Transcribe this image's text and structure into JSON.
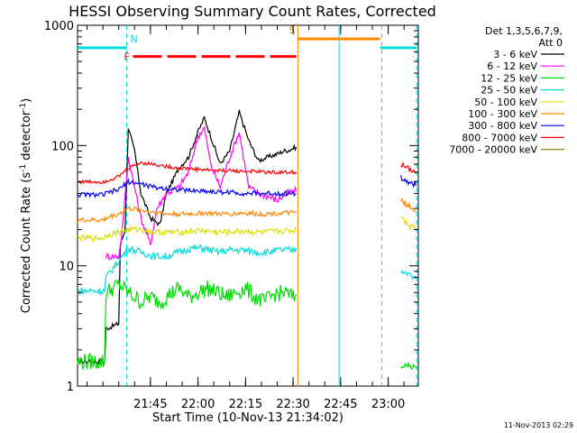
{
  "chart_data": {
    "type": "line",
    "title": "HESSI Observing Summary Count Rates, Corrected",
    "xlabel": "Start Time (10-Nov-13 21:34:02)",
    "ylabel_main": "Corrected Count Rate (s",
    "ylabel_sup1": "-1",
    "ylabel_mid": " detector",
    "ylabel_sup2": "-1",
    "ylabel_end": ")",
    "footer": "11-Nov-2013 02:29",
    "y_scale": "log",
    "ylim": [
      1,
      1000
    ],
    "xlim_minutes": [
      -38,
      69.5
    ],
    "x_ticks": [
      {
        "label": "21:45",
        "min": -15
      },
      {
        "label": "22:00",
        "min": 0
      },
      {
        "label": "22:15",
        "min": 15
      },
      {
        "label": "22:30",
        "min": 30
      },
      {
        "label": "22:45",
        "min": 45
      },
      {
        "label": "23:00",
        "min": 60
      }
    ],
    "y_ticks": [
      {
        "label": "1",
        "value": 1
      },
      {
        "label": "10",
        "value": 10
      },
      {
        "label": "100",
        "value": 100
      },
      {
        "label": "1000",
        "value": 1000
      }
    ],
    "legend_header": [
      "Det 1,3,5,6,7,9,",
      "Att 0"
    ],
    "legend_placement": "right",
    "series": [
      {
        "name": "3 - 6 keV",
        "color": "#000000",
        "pts": [
          [
            -38,
            1.6
          ],
          [
            -29.5,
            1.6
          ],
          [
            -29,
            3
          ],
          [
            -25,
            3.3
          ],
          [
            -24.5,
            15
          ],
          [
            -23,
            20
          ],
          [
            -22,
            140
          ],
          [
            -20,
            90
          ],
          [
            -18,
            40
          ],
          [
            -15,
            25
          ],
          [
            -12,
            22
          ],
          [
            -10,
            40
          ],
          [
            -6,
            65
          ],
          [
            -3,
            80
          ],
          [
            0,
            130
          ],
          [
            2,
            170
          ],
          [
            4,
            120
          ],
          [
            7,
            70
          ],
          [
            10,
            90
          ],
          [
            13,
            190
          ],
          [
            16,
            110
          ],
          [
            19,
            75
          ],
          [
            22,
            80
          ],
          [
            25,
            85
          ],
          [
            27,
            90
          ],
          [
            29,
            92
          ],
          [
            30,
            95
          ],
          [
            31,
            97
          ]
        ]
      },
      {
        "name": "6 - 12 keV",
        "color": "#ff00ff",
        "pts": [
          [
            -29,
            12
          ],
          [
            -25,
            12
          ],
          [
            -24,
            18
          ],
          [
            -22,
            80
          ],
          [
            -20,
            45
          ],
          [
            -18,
            25
          ],
          [
            -15,
            15
          ],
          [
            -13,
            30
          ],
          [
            -10,
            40
          ],
          [
            -6,
            45
          ],
          [
            -3,
            60
          ],
          [
            0,
            120
          ],
          [
            2,
            140
          ],
          [
            4,
            70
          ],
          [
            7,
            45
          ],
          [
            10,
            80
          ],
          [
            13,
            130
          ],
          [
            16,
            45
          ],
          [
            19,
            40
          ],
          [
            22,
            38
          ],
          [
            25,
            35
          ],
          [
            28,
            40
          ],
          [
            31,
            42
          ]
        ]
      },
      {
        "name": "12 - 25 keV",
        "color": "#00dd00",
        "pts": [
          [
            -38,
            1.6
          ],
          [
            -29.5,
            1.6
          ],
          [
            -29,
            6
          ],
          [
            -25,
            7
          ],
          [
            -22,
            6
          ],
          [
            -18,
            5
          ],
          [
            -15,
            5.5
          ],
          [
            -12,
            5
          ],
          [
            -9,
            5.8
          ],
          [
            -6,
            6.5
          ],
          [
            -3,
            5.5
          ],
          [
            0,
            6
          ],
          [
            3,
            6.5
          ],
          [
            6,
            6
          ],
          [
            9,
            5.5
          ],
          [
            12,
            6
          ],
          [
            15,
            6.5
          ],
          [
            18,
            5.5
          ],
          [
            21,
            5
          ],
          [
            24,
            5.8
          ],
          [
            27,
            6
          ],
          [
            30,
            5.5
          ],
          [
            31,
            5.8
          ]
        ]
      },
      {
        "name": "25 - 50 keV",
        "color": "#00dddd",
        "pts": [
          [
            -38,
            6.2
          ],
          [
            -29.5,
            6.2
          ],
          [
            -29,
            8
          ],
          [
            -25,
            11
          ],
          [
            -22,
            14
          ],
          [
            -18,
            13
          ],
          [
            -14,
            12
          ],
          [
            -10,
            12
          ],
          [
            -6,
            13
          ],
          [
            -2,
            14
          ],
          [
            2,
            14
          ],
          [
            6,
            13
          ],
          [
            10,
            13.5
          ],
          [
            14,
            13.5
          ],
          [
            18,
            13
          ],
          [
            22,
            13
          ],
          [
            26,
            13.5
          ],
          [
            30,
            13.5
          ],
          [
            31,
            14
          ]
        ]
      },
      {
        "name": "50 - 100 keV",
        "color": "#dddd00",
        "pts": [
          [
            -38,
            17
          ],
          [
            -29.5,
            17
          ],
          [
            -29,
            18
          ],
          [
            -25,
            19
          ],
          [
            -22,
            20
          ],
          [
            -18,
            20
          ],
          [
            -14,
            19
          ],
          [
            -10,
            19
          ],
          [
            -6,
            19
          ],
          [
            -2,
            19.5
          ],
          [
            2,
            19.5
          ],
          [
            6,
            19
          ],
          [
            10,
            19
          ],
          [
            14,
            19.5
          ],
          [
            18,
            19
          ],
          [
            22,
            19
          ],
          [
            26,
            19.5
          ],
          [
            30,
            19.5
          ],
          [
            31,
            20
          ]
        ]
      },
      {
        "name": "100 - 300 keV",
        "color": "#ff8800",
        "pts": [
          [
            -38,
            24
          ],
          [
            -29.5,
            24
          ],
          [
            -29,
            25
          ],
          [
            -25,
            27
          ],
          [
            -22,
            30
          ],
          [
            -18,
            29
          ],
          [
            -14,
            28
          ],
          [
            -10,
            27
          ],
          [
            -6,
            27
          ],
          [
            -2,
            27
          ],
          [
            2,
            27.5
          ],
          [
            6,
            27
          ],
          [
            10,
            27
          ],
          [
            14,
            27.5
          ],
          [
            18,
            27
          ],
          [
            22,
            27
          ],
          [
            26,
            27.5
          ],
          [
            30,
            27.5
          ],
          [
            31,
            28
          ]
        ]
      },
      {
        "name": "300 - 800 keV",
        "color": "#0000ff",
        "pts": [
          [
            -38,
            39
          ],
          [
            -29.5,
            39
          ],
          [
            -29,
            40
          ],
          [
            -25,
            43
          ],
          [
            -22,
            50
          ],
          [
            -18,
            48
          ],
          [
            -14,
            45
          ],
          [
            -10,
            44
          ],
          [
            -6,
            43
          ],
          [
            -2,
            42
          ],
          [
            2,
            42
          ],
          [
            6,
            41
          ],
          [
            10,
            41
          ],
          [
            14,
            40
          ],
          [
            18,
            40
          ],
          [
            22,
            40
          ],
          [
            26,
            40
          ],
          [
            30,
            40
          ],
          [
            31,
            40
          ]
        ]
      },
      {
        "name": "800 - 7000 keV",
        "color": "#ff0000",
        "pts": [
          [
            -38,
            50
          ],
          [
            -29.5,
            50
          ],
          [
            -29,
            51
          ],
          [
            -25,
            55
          ],
          [
            -22,
            65
          ],
          [
            -18,
            72
          ],
          [
            -14,
            70
          ],
          [
            -10,
            67
          ],
          [
            -6,
            65
          ],
          [
            -2,
            64
          ],
          [
            2,
            63
          ],
          [
            6,
            62
          ],
          [
            10,
            62
          ],
          [
            14,
            61
          ],
          [
            18,
            61
          ],
          [
            22,
            60
          ],
          [
            26,
            60
          ],
          [
            30,
            60
          ],
          [
            31,
            60
          ]
        ]
      },
      {
        "name": "7000 - 20000 keV",
        "color": "#888800",
        "pts": []
      }
    ],
    "late_segments": [
      {
        "color": "#ff0000",
        "pts": [
          [
            64,
            70
          ],
          [
            66,
            65
          ],
          [
            69,
            60
          ]
        ]
      },
      {
        "color": "#0000ff",
        "pts": [
          [
            64,
            55
          ],
          [
            66,
            50
          ],
          [
            69,
            47
          ]
        ]
      },
      {
        "color": "#ff8800",
        "pts": [
          [
            64,
            35
          ],
          [
            66,
            32
          ],
          [
            69,
            28
          ]
        ]
      },
      {
        "color": "#dddd00",
        "pts": [
          [
            64,
            25
          ],
          [
            66,
            22
          ],
          [
            69,
            20
          ]
        ]
      },
      {
        "color": "#00dddd",
        "pts": [
          [
            64,
            9
          ],
          [
            66,
            8.5
          ],
          [
            69,
            8
          ]
        ]
      },
      {
        "color": "#00dd00",
        "pts": [
          [
            64,
            1.4
          ],
          [
            66,
            1.5
          ],
          [
            69,
            1.4
          ]
        ]
      }
    ],
    "status_bars": [
      {
        "label": "",
        "color": "#00dddd",
        "from": -38,
        "to": -22.5,
        "value": 650
      },
      {
        "label": "N",
        "color": "#00dddd",
        "from": -22.5,
        "to": -22.5,
        "value": 650
      },
      {
        "label": "F",
        "color": "#ff0000",
        "from": -20.5,
        "to": 31,
        "value": 550,
        "dashed": true
      },
      {
        "label": "S",
        "color": "#ff8800",
        "from": 31.5,
        "to": 57.5,
        "value": 770
      },
      {
        "label": "",
        "color": "#00dddd",
        "from": 57.5,
        "to": 69,
        "value": 650
      }
    ],
    "vlines": [
      {
        "min": -22.5,
        "color": "#00dddd",
        "dashed": true
      },
      {
        "min": 31.5,
        "color": "#ff8800",
        "dashed": false
      },
      {
        "min": 44.5,
        "color": "#00dddd",
        "dashed": false
      },
      {
        "min": 58,
        "color": "#ff8800",
        "dashed": true
      },
      {
        "min": 69,
        "color": "#00dddd",
        "dashed": true
      }
    ]
  }
}
